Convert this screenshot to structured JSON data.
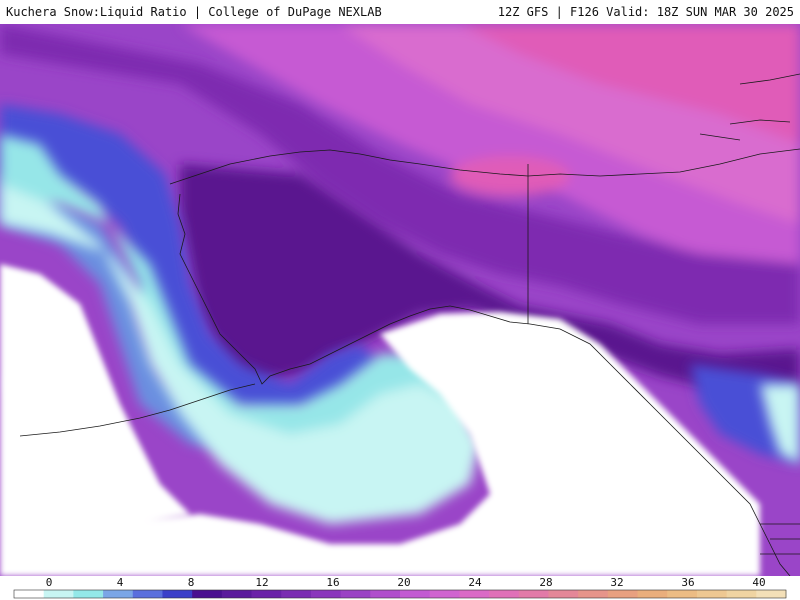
{
  "header": {
    "title_left": "Kuchera Snow:Liquid Ratio | College of DuPage NEXLAB",
    "title_right": "12Z GFS | F126 Valid: 18Z SUN MAR 30 2025"
  },
  "legend": {
    "ticks": [
      "0",
      "4",
      "8",
      "12",
      "16",
      "20",
      "24",
      "28",
      "32",
      "36",
      "40"
    ],
    "colors": [
      "#ffffff",
      "#c8f5f3",
      "#93e8e8",
      "#7aa6e6",
      "#5a6fdd",
      "#3b3fc9",
      "#4a1090",
      "#5a1a9c",
      "#6a22a8",
      "#7a2cb2",
      "#8a36bc",
      "#9a42c4",
      "#b04ecc",
      "#c25ad2",
      "#d064d0",
      "#da6ac6",
      "#e070b8",
      "#e27aa8",
      "#e48798",
      "#e6948a",
      "#e8a080",
      "#eaae7c",
      "#ecbc84",
      "#eec892",
      "#f0d4a2",
      "#f4e0b8"
    ]
  },
  "map": {
    "colors": {
      "land_white": "#ffffff",
      "light_cyan": "#c8f5f3",
      "cyan": "#96e6e8",
      "blue": "#6a8fe0",
      "deep_blue": "#4a4fd6",
      "dark_purple": "#5a158f",
      "purple": "#7e2bb0",
      "violet": "#9a45c8",
      "magenta": "#c65ad3",
      "pink": "#d96ccf",
      "hot_pink": "#e05cb8",
      "outline": "#1a1a1a"
    }
  }
}
